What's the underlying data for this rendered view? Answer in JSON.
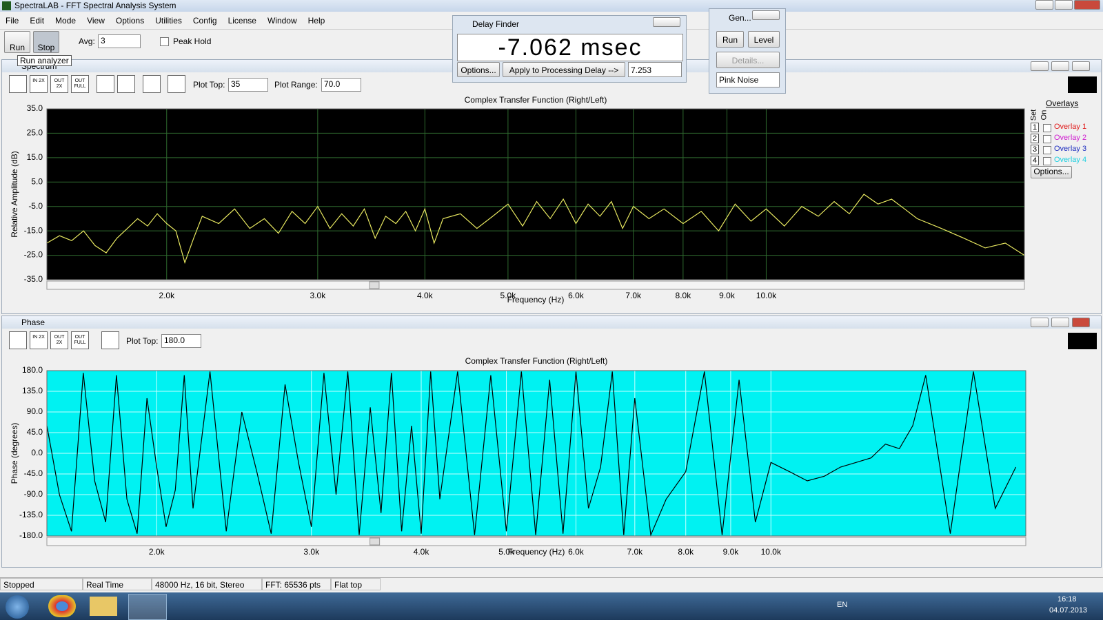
{
  "window": {
    "title": "SpectraLAB - FFT Spectral Analysis System"
  },
  "menu": [
    "File",
    "Edit",
    "Mode",
    "View",
    "Options",
    "Utilities",
    "Config",
    "License",
    "Window",
    "Help"
  ],
  "toolbar": {
    "run": "Run",
    "stop": "Stop",
    "avg_label": "Avg:",
    "avg_value": "3",
    "peak_hold": "Peak Hold",
    "tooltip": "Run analyzer"
  },
  "delay_finder": {
    "title": "Delay Finder",
    "readout": "-7.062 msec",
    "options": "Options...",
    "apply": "Apply to Processing Delay -->",
    "delay_value": "7.253"
  },
  "generator": {
    "title": "Gen...",
    "run": "Run",
    "level": "Level",
    "details": "Details...",
    "signal": "Pink Noise"
  },
  "spectrum": {
    "title": "Spectrum",
    "zoom_buttons": [
      "IN 2X",
      "OUT 2X",
      "OUT FULL"
    ],
    "plot_top_label": "Plot Top:",
    "plot_top": "35",
    "plot_range_label": "Plot Range:",
    "plot_range": "70.0",
    "overlays": {
      "title": "Overlays",
      "set": "Set",
      "on": "On",
      "items": [
        {
          "num": "1",
          "label": "Overlay 1"
        },
        {
          "num": "2",
          "label": "Overlay 2"
        },
        {
          "num": "3",
          "label": "Overlay 3"
        },
        {
          "num": "4",
          "label": "Overlay 4"
        }
      ],
      "options": "Options..."
    }
  },
  "phase": {
    "title": "Phase",
    "zoom_buttons": [
      "IN 2X",
      "OUT 2X",
      "OUT FULL"
    ],
    "plot_top_label": "Plot Top:",
    "plot_top": "180.0"
  },
  "status": [
    "Stopped",
    "Real Time",
    "48000 Hz, 16 bit, Stereo",
    "FFT: 65536 pts",
    "Flat top"
  ],
  "taskbar": {
    "lang": "EN",
    "time": "16:18",
    "date": "04.07.2013"
  },
  "chart_data": [
    {
      "type": "line",
      "title": "Complex Transfer Function (Right/Left)",
      "x_label": "Frequency (Hz)",
      "y_label": "Relative Amplitude (dB)",
      "xscale": "log",
      "xlim": [
        1450,
        20000
      ],
      "ylim": [
        -35,
        35
      ],
      "xticks": [
        {
          "value": 2000,
          "label": "2.0k"
        },
        {
          "value": 3000,
          "label": "3.0k"
        },
        {
          "value": 4000,
          "label": "4.0k"
        },
        {
          "value": 5000,
          "label": "5.0k"
        },
        {
          "value": 6000,
          "label": "6.0k"
        },
        {
          "value": 7000,
          "label": "7.0k"
        },
        {
          "value": 8000,
          "label": "8.0k"
        },
        {
          "value": 9000,
          "label": "9.0k"
        },
        {
          "value": 10000,
          "label": "10.0k"
        }
      ],
      "yticks": [
        {
          "value": 35,
          "label": "35.0"
        },
        {
          "value": 25,
          "label": "25.0"
        },
        {
          "value": 15,
          "label": "15.0"
        },
        {
          "value": 5,
          "label": "5.0"
        },
        {
          "value": -5,
          "label": "-5.0"
        },
        {
          "value": -15,
          "label": "-15.0"
        },
        {
          "value": -25,
          "label": "-25.0"
        },
        {
          "value": -35,
          "label": "-35.0"
        }
      ],
      "grid": true,
      "background": "#000000",
      "grid_color": "#2f6a2f",
      "color": "#e8e860",
      "x": [
        1450,
        1500,
        1550,
        1600,
        1650,
        1700,
        1750,
        1800,
        1850,
        1900,
        1950,
        2000,
        2050,
        2100,
        2150,
        2200,
        2300,
        2400,
        2500,
        2600,
        2700,
        2800,
        2900,
        3000,
        3100,
        3200,
        3300,
        3400,
        3500,
        3600,
        3700,
        3800,
        3900,
        4000,
        4100,
        4200,
        4400,
        4600,
        4800,
        5000,
        5200,
        5400,
        5600,
        5800,
        6000,
        6200,
        6400,
        6600,
        6800,
        7000,
        7300,
        7600,
        8000,
        8400,
        8800,
        9200,
        9600,
        10000,
        10500,
        11000,
        11500,
        12000,
        12500,
        13000,
        13500,
        14000,
        14500,
        15000,
        16000,
        17000,
        18000,
        19000,
        20000
      ],
      "values": [
        -20,
        -17,
        -19,
        -15,
        -21,
        -24,
        -18,
        -14,
        -10,
        -13,
        -8,
        -12,
        -15,
        -28,
        -18,
        -9,
        -12,
        -6,
        -14,
        -10,
        -16,
        -7,
        -12,
        -5,
        -14,
        -8,
        -13,
        -6,
        -18,
        -9,
        -12,
        -7,
        -15,
        -6,
        -20,
        -10,
        -8,
        -14,
        -9,
        -4,
        -13,
        -3,
        -10,
        -2,
        -12,
        -4,
        -9,
        -3,
        -14,
        -5,
        -10,
        -6,
        -12,
        -7,
        -15,
        -4,
        -11,
        -6,
        -13,
        -5,
        -9,
        -3,
        -8,
        0,
        -4,
        -2,
        -6,
        -10,
        -14,
        -18,
        -22,
        -20,
        -25
      ]
    },
    {
      "type": "line",
      "title": "Complex Transfer Function (Right/Left)",
      "x_label": "Frequency (Hz)",
      "y_label": "Phase (degrees)",
      "xscale": "log",
      "xlim": [
        1500,
        19500
      ],
      "ylim": [
        -180,
        180
      ],
      "xticks": [
        {
          "value": 2000,
          "label": "2.0k"
        },
        {
          "value": 3000,
          "label": "3.0k"
        },
        {
          "value": 4000,
          "label": "4.0k"
        },
        {
          "value": 5000,
          "label": "5.0k"
        },
        {
          "value": 6000,
          "label": "6.0k"
        },
        {
          "value": 7000,
          "label": "7.0k"
        },
        {
          "value": 8000,
          "label": "8.0k"
        },
        {
          "value": 9000,
          "label": "9.0k"
        },
        {
          "value": 10000,
          "label": "10.0k"
        }
      ],
      "yticks": [
        {
          "value": 180,
          "label": "180.0"
        },
        {
          "value": 135,
          "label": "135.0"
        },
        {
          "value": 90,
          "label": "90.0"
        },
        {
          "value": 45,
          "label": "45.0"
        },
        {
          "value": 0,
          "label": "0.0"
        },
        {
          "value": -45,
          "label": "-45.0"
        },
        {
          "value": -90,
          "label": "-90.0"
        },
        {
          "value": -135,
          "label": "-135.0"
        },
        {
          "value": -180,
          "label": "-180.0"
        }
      ],
      "grid": true,
      "background": "#00f2f2",
      "grid_color": "#c8ffff",
      "color": "#000000",
      "x": [
        1500,
        1550,
        1600,
        1650,
        1700,
        1750,
        1800,
        1850,
        1900,
        1950,
        2000,
        2050,
        2100,
        2150,
        2200,
        2300,
        2400,
        2500,
        2600,
        2700,
        2800,
        2900,
        3000,
        3100,
        3200,
        3300,
        3400,
        3500,
        3600,
        3700,
        3800,
        3900,
        4000,
        4100,
        4200,
        4400,
        4600,
        4800,
        5000,
        5200,
        5400,
        5600,
        5800,
        6000,
        6200,
        6400,
        6600,
        6800,
        7000,
        7300,
        7600,
        8000,
        8400,
        8800,
        9200,
        9600,
        10000,
        10500,
        11000,
        11500,
        12000,
        12500,
        13000,
        13500,
        14000,
        14500,
        15000,
        16000,
        17000,
        18000,
        19000
      ],
      "values": [
        60,
        -90,
        -170,
        175,
        -60,
        -150,
        170,
        -100,
        -175,
        120,
        -30,
        -160,
        -80,
        170,
        -120,
        178,
        -170,
        90,
        -40,
        -175,
        150,
        -20,
        -160,
        175,
        -90,
        178,
        -178,
        100,
        -130,
        175,
        -170,
        60,
        -175,
        178,
        -100,
        178,
        -178,
        170,
        -170,
        178,
        -178,
        160,
        -175,
        178,
        -120,
        -30,
        178,
        -178,
        120,
        -178,
        -100,
        -40,
        178,
        -178,
        160,
        -150,
        -20,
        -40,
        -60,
        -50,
        -30,
        -20,
        -10,
        20,
        10,
        60,
        170,
        -175,
        178,
        -120,
        -30
      ]
    }
  ]
}
